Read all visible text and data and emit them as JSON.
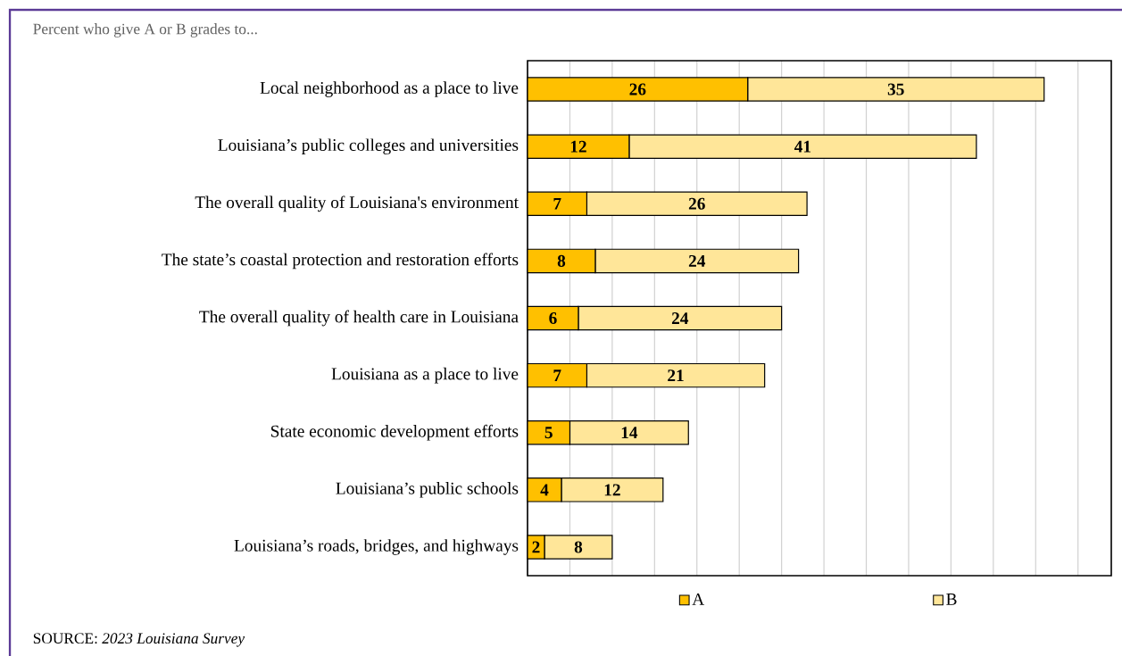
{
  "chart_data": {
    "type": "bar",
    "orientation": "horizontal",
    "stacked": true,
    "title": "Percent who give A or B grades to...",
    "categories": [
      "Local neighborhood as a place to live",
      "Louisiana’s public colleges and universities",
      "The overall quality of Louisiana's environment",
      "The state’s coastal protection and restoration efforts",
      "The overall quality of health care in Louisiana",
      "Louisiana as a place to live",
      "State economic development efforts",
      "Louisiana’s public schools",
      "Louisiana’s roads, bridges, and highways"
    ],
    "series": [
      {
        "name": "A",
        "color": "#ffc000",
        "values": [
          26,
          12,
          7,
          8,
          6,
          7,
          5,
          4,
          2
        ]
      },
      {
        "name": "B",
        "color": "#ffe699",
        "values": [
          35,
          41,
          26,
          24,
          24,
          21,
          14,
          12,
          8
        ]
      }
    ],
    "tick_labels": "y",
    "grid": "x",
    "legend": "bottom",
    "data_labels": true,
    "annotations": [
      "SOURCE: *2023 Louisiana Survey*"
    ]
  }
}
